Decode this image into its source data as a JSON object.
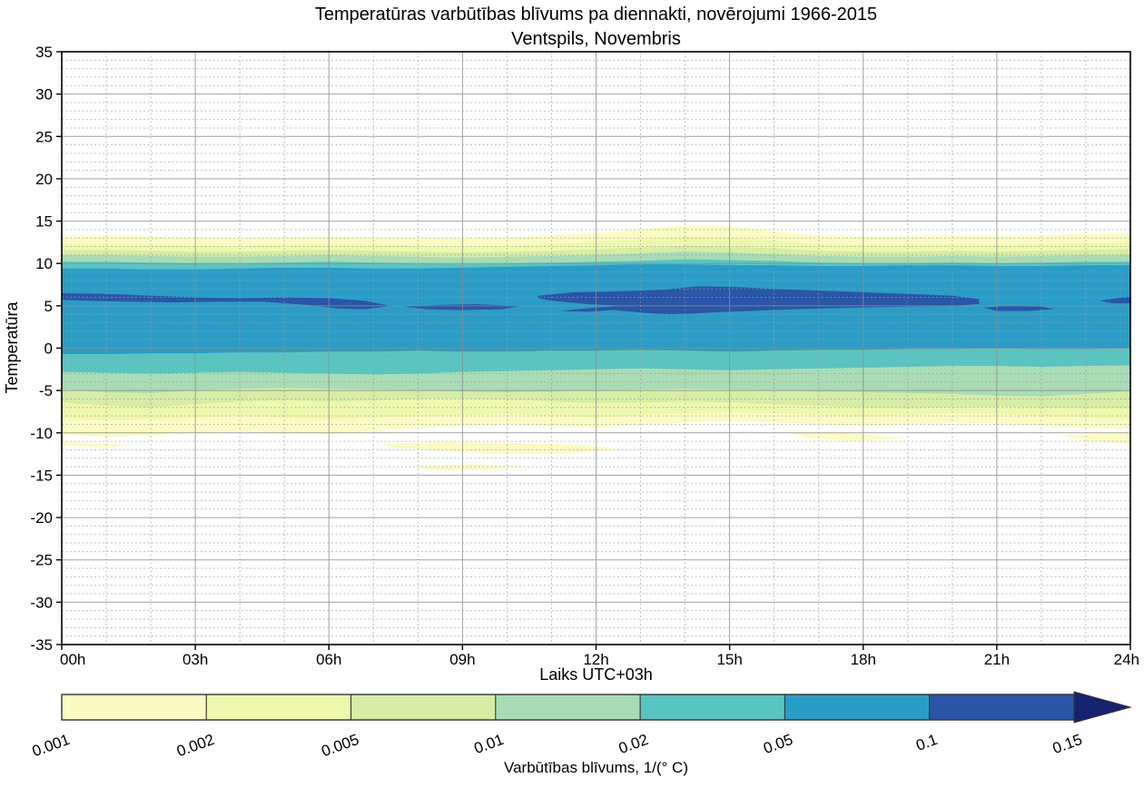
{
  "title": {
    "line1": "Temperatūras varbūtības blīvums pa diennakti, novērojumi 1966-2015",
    "line2": "Ventspils, Novembris"
  },
  "axes": {
    "xlabel": "Laiks UTC+03h",
    "ylabel": "Temperatūra",
    "x_tick_hours": [
      0,
      3,
      6,
      9,
      12,
      15,
      18,
      21,
      24
    ],
    "x_tick_labels": [
      "00h",
      "03h",
      "06h",
      "09h",
      "12h",
      "15h",
      "18h",
      "21h",
      "24h"
    ],
    "y_ticks": [
      35,
      30,
      25,
      20,
      15,
      10,
      5,
      0,
      -5,
      -10,
      -15,
      -20,
      -25,
      -30,
      -35
    ],
    "x_range_hours": [
      0,
      24
    ],
    "y_range": [
      -35,
      35
    ],
    "minor_grid_x_step_hours": 1,
    "minor_grid_y_step_deg": 1
  },
  "colorbar": {
    "caption": "Varbūtības blīvums, 1/(° C)",
    "tick_labels": [
      "0.001",
      "0.002",
      "0.005",
      "0.01",
      "0.02",
      "0.05",
      "0.1",
      "0.15"
    ],
    "segment_colors": [
      "#fafcc3",
      "#eef8ad",
      "#d5eda4",
      "#a9dcb5",
      "#58c5c2",
      "#2a9dc7",
      "#2b55a7"
    ],
    "overflow_color": "#15236e",
    "border_color": "#333333"
  },
  "chart_data": {
    "type": "filled-contour",
    "title": "Temperatūras varbūtības blīvums pa diennakti, novērojumi 1966-2015 — Ventspils, Novembris",
    "xlabel": "Laiks UTC+03h",
    "ylabel": "Temperatūra",
    "xlim_hours": [
      0,
      24
    ],
    "ylim_deg": [
      -35,
      35
    ],
    "grid": "on",
    "legend_position": "horizontal colorbar below axes",
    "density_levels": [
      0.001,
      0.002,
      0.005,
      0.01,
      0.02,
      0.05,
      0.1,
      0.15
    ],
    "x_hours": [
      0,
      1,
      2,
      3,
      4,
      5,
      6,
      7,
      8,
      9,
      10,
      11,
      12,
      13,
      14,
      15,
      16,
      17,
      18,
      19,
      20,
      21,
      22,
      23,
      24
    ],
    "bands": [
      {
        "level": 0.001,
        "color": "#fafcc3",
        "upper": [
          13.2,
          13.3,
          13.2,
          13.1,
          13.0,
          13.1,
          13.2,
          13.1,
          13.0,
          13.0,
          13.1,
          13.3,
          13.6,
          14.0,
          14.5,
          14.4,
          13.8,
          13.3,
          13.2,
          13.2,
          13.3,
          13.2,
          13.3,
          13.5,
          13.6
        ],
        "lower": [
          -10.2,
          -10.5,
          -10.3,
          -10.0,
          -9.8,
          -10.0,
          -10.2,
          -9.8,
          -9.4,
          -9.2,
          -9.0,
          -9.2,
          -9.4,
          -9.0,
          -8.8,
          -8.6,
          -8.8,
          -9.0,
          -9.2,
          -9.0,
          -8.8,
          -8.9,
          -9.2,
          -9.4,
          -9.5
        ]
      },
      {
        "level": 0.002,
        "color": "#eef8ad",
        "upper": [
          12.3,
          12.3,
          12.2,
          12.1,
          12.1,
          12.2,
          12.3,
          12.2,
          12.1,
          12.0,
          12.1,
          12.3,
          12.6,
          12.9,
          13.2,
          13.1,
          12.7,
          12.3,
          12.2,
          12.2,
          12.3,
          12.2,
          12.3,
          12.4,
          12.5
        ],
        "lower": [
          -8.3,
          -8.5,
          -8.4,
          -8.2,
          -8.0,
          -8.2,
          -8.4,
          -8.2,
          -8.0,
          -7.9,
          -7.8,
          -8.0,
          -8.2,
          -7.9,
          -7.7,
          -7.6,
          -7.7,
          -7.9,
          -8.1,
          -7.9,
          -7.7,
          -7.8,
          -8.0,
          -8.2,
          -8.4
        ]
      },
      {
        "level": 0.005,
        "color": "#d5eda4",
        "upper": [
          11.6,
          11.6,
          11.5,
          11.4,
          11.4,
          11.5,
          11.6,
          11.5,
          11.4,
          11.3,
          11.4,
          11.5,
          11.7,
          11.9,
          12.1,
          12.0,
          11.8,
          11.5,
          11.4,
          11.4,
          11.5,
          11.4,
          11.5,
          11.6,
          11.7
        ],
        "lower": [
          -6.4,
          -6.8,
          -7.0,
          -6.6,
          -6.3,
          -6.2,
          -6.3,
          -6.2,
          -6.0,
          -6.0,
          -6.1,
          -6.3,
          -6.5,
          -6.4,
          -6.3,
          -6.4,
          -6.6,
          -6.8,
          -7.0,
          -7.1,
          -7.0,
          -6.9,
          -7.0,
          -7.1,
          -7.1
        ]
      },
      {
        "level": 0.01,
        "color": "#a9dcb5",
        "upper": [
          11.0,
          11.0,
          10.9,
          10.8,
          10.8,
          10.9,
          11.0,
          10.9,
          10.8,
          10.7,
          10.8,
          10.9,
          11.0,
          11.2,
          11.4,
          11.3,
          11.1,
          10.9,
          10.8,
          10.8,
          10.9,
          10.8,
          10.9,
          11.0,
          11.0
        ],
        "lower": [
          -4.9,
          -5.2,
          -5.3,
          -5.0,
          -4.8,
          -4.7,
          -4.8,
          -4.9,
          -5.0,
          -5.1,
          -5.2,
          -5.1,
          -5.0,
          -4.9,
          -4.8,
          -4.9,
          -5.0,
          -5.1,
          -5.2,
          -5.3,
          -5.4,
          -5.6,
          -5.7,
          -5.4,
          -5.1
        ]
      },
      {
        "level": 0.02,
        "color": "#58c5c2",
        "upper": [
          10.2,
          10.2,
          10.1,
          10.0,
          10.0,
          10.1,
          10.2,
          10.1,
          10.0,
          9.9,
          10.0,
          10.1,
          10.2,
          10.3,
          10.5,
          10.4,
          10.3,
          10.1,
          10.0,
          10.0,
          10.1,
          10.0,
          10.1,
          10.2,
          10.2
        ],
        "lower": [
          -2.8,
          -2.9,
          -3.0,
          -2.9,
          -2.8,
          -2.9,
          -3.0,
          -3.1,
          -3.0,
          -2.8,
          -2.7,
          -2.6,
          -2.5,
          -2.4,
          -2.5,
          -2.6,
          -2.5,
          -2.4,
          -2.3,
          -2.2,
          -2.1,
          -2.1,
          -2.2,
          -2.1,
          -2.0
        ]
      },
      {
        "level": 0.05,
        "color": "#2a9dc7",
        "upper": [
          9.4,
          9.4,
          9.3,
          9.3,
          9.4,
          9.5,
          9.5,
          9.4,
          9.4,
          9.5,
          9.6,
          9.7,
          9.8,
          9.9,
          9.9,
          9.8,
          9.8,
          9.7,
          9.7,
          9.8,
          9.8,
          9.7,
          9.7,
          9.8,
          9.8
        ],
        "lower": [
          -0.7,
          -0.7,
          -0.6,
          -0.6,
          -0.5,
          -0.5,
          -0.4,
          -0.4,
          -0.3,
          -0.4,
          -0.4,
          -0.3,
          -0.3,
          -0.2,
          -0.3,
          -0.4,
          -0.3,
          -0.2,
          -0.2,
          -0.1,
          -0.1,
          0.0,
          -0.1,
          -0.1,
          0.0
        ]
      }
    ],
    "high_density_blobs": {
      "level": 0.1,
      "color": "#2b55a7",
      "polygons_hour_deg": [
        [
          [
            0,
            6.5
          ],
          [
            1,
            6.4
          ],
          [
            2,
            6.2
          ],
          [
            3,
            6.0
          ],
          [
            4,
            5.9
          ],
          [
            5,
            6.0
          ],
          [
            6,
            5.9
          ],
          [
            6.8,
            5.6
          ],
          [
            7.4,
            5.0
          ],
          [
            6.8,
            4.6
          ],
          [
            6.2,
            4.7
          ],
          [
            5.5,
            5.1
          ],
          [
            4.5,
            5.5
          ],
          [
            3.5,
            5.5
          ],
          [
            2.5,
            5.4
          ],
          [
            1.5,
            5.5
          ],
          [
            0.5,
            5.6
          ],
          [
            0,
            5.7
          ]
        ],
        [
          [
            7.7,
            4.9
          ],
          [
            8.4,
            5.1
          ],
          [
            9.3,
            5.2
          ],
          [
            10.3,
            5.0
          ],
          [
            9.9,
            4.6
          ],
          [
            9.0,
            4.5
          ],
          [
            8.2,
            4.6
          ]
        ],
        [
          [
            10.7,
            6.2
          ],
          [
            11.5,
            6.6
          ],
          [
            12.5,
            6.7
          ],
          [
            13.5,
            6.9
          ],
          [
            14.3,
            7.3
          ],
          [
            15.2,
            7.2
          ],
          [
            16,
            7.0
          ],
          [
            17,
            6.8
          ],
          [
            18,
            6.6
          ],
          [
            19,
            6.4
          ],
          [
            20,
            6.2
          ],
          [
            20.6,
            5.8
          ],
          [
            20.6,
            5.2
          ],
          [
            20,
            5.0
          ],
          [
            19,
            4.9
          ],
          [
            18,
            4.8
          ],
          [
            17,
            4.7
          ],
          [
            16,
            4.5
          ],
          [
            15,
            4.3
          ],
          [
            14.2,
            4.1
          ],
          [
            13.6,
            4.0
          ],
          [
            13.0,
            4.2
          ],
          [
            12.4,
            4.5
          ],
          [
            11.8,
            4.3
          ],
          [
            11.2,
            4.4
          ],
          [
            12.0,
            4.8
          ],
          [
            12.6,
            5.0
          ],
          [
            11.8,
            5.2
          ],
          [
            11.0,
            5.6
          ],
          [
            10.7,
            5.9
          ]
        ],
        [
          [
            20.7,
            4.8
          ],
          [
            21.3,
            5.0
          ],
          [
            22.0,
            4.9
          ],
          [
            22.3,
            4.6
          ],
          [
            21.7,
            4.4
          ],
          [
            21.0,
            4.4
          ]
        ],
        [
          [
            23.3,
            5.6
          ],
          [
            23.7,
            5.9
          ],
          [
            24,
            6.1
          ],
          [
            24,
            5.3
          ],
          [
            23.6,
            5.3
          ]
        ]
      ]
    },
    "detached_low_density_patches": {
      "level": 0.001,
      "color": "#fafcc3",
      "polygons_hour_deg": [
        [
          [
            0,
            -11.1
          ],
          [
            0.9,
            -11.2
          ],
          [
            1.7,
            -11.5
          ],
          [
            0.9,
            -11.7
          ],
          [
            0,
            -11.5
          ]
        ],
        [
          [
            7.2,
            -11.3
          ],
          [
            8.6,
            -11.1
          ],
          [
            10.2,
            -11.2
          ],
          [
            11.6,
            -11.4
          ],
          [
            12.6,
            -11.9
          ],
          [
            11.4,
            -12.4
          ],
          [
            9.8,
            -12.5
          ],
          [
            8.4,
            -12.1
          ],
          [
            7.4,
            -11.7
          ]
        ],
        [
          [
            7.8,
            -14.0
          ],
          [
            9.0,
            -13.7
          ],
          [
            10.4,
            -13.9
          ],
          [
            9.6,
            -14.4
          ],
          [
            8.4,
            -14.4
          ]
        ],
        [
          [
            16.3,
            -9.9
          ],
          [
            17.5,
            -10.0
          ],
          [
            19.0,
            -10.6
          ],
          [
            17.8,
            -11.0
          ],
          [
            16.8,
            -10.6
          ]
        ],
        [
          [
            22.4,
            -10.3
          ],
          [
            23.3,
            -10.1
          ],
          [
            24,
            -10.1
          ],
          [
            24,
            -11.3
          ],
          [
            23.0,
            -10.9
          ]
        ]
      ]
    }
  },
  "style": {
    "frame_color": "#000000",
    "major_grid_color": "#8c8c8c",
    "minor_grid_color": "#9a9a9a",
    "background": "#ffffff"
  }
}
